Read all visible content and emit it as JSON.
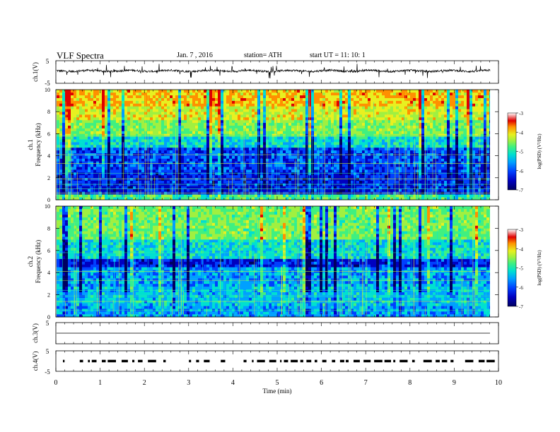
{
  "header": {
    "title": "VLF Spectra",
    "date": "Jan. 7 , 2016",
    "station": "station= ATH",
    "start": "start UT = 11: 10: 1"
  },
  "colors": {
    "colormap": [
      "#000060",
      "#0000c0",
      "#0040ff",
      "#00a0ff",
      "#00e0d0",
      "#40f080",
      "#a0f040",
      "#e8f020",
      "#ff9000",
      "#e00000",
      "#ffffff"
    ]
  },
  "chart_data": [
    {
      "type": "line",
      "title": "",
      "ylabel": "ch.1(V)",
      "xlabel": "",
      "ylim": [
        -5,
        5
      ],
      "xlim": [
        0,
        10
      ],
      "y_ticks": [
        "5",
        "-5"
      ],
      "series": [
        {
          "values_summary": "noisy trace oscillating around ~0.5 V with frequent spikes up to ±3 V",
          "mean": 0.5,
          "amplitude": 3
        }
      ]
    },
    {
      "type": "heatmap",
      "ylabel_1": "ch.1",
      "ylabel_2": "Frequency (kHz)",
      "ylim": [
        0,
        10
      ],
      "xlim": [
        0,
        10
      ],
      "y_ticks": [
        "0",
        "2",
        "4",
        "6",
        "8",
        "10"
      ],
      "bands": [
        {
          "from": 0,
          "to": 0.5,
          "level": 0.55
        },
        {
          "from": 0.5,
          "to": 2.6,
          "level": 0.2
        },
        {
          "from": 2.6,
          "to": 4.7,
          "level": 0.25
        },
        {
          "from": 4.7,
          "to": 5.8,
          "level": 0.45
        },
        {
          "from": 5.8,
          "to": 7.2,
          "level": 0.62
        },
        {
          "from": 7.2,
          "to": 8.6,
          "level": 0.72
        },
        {
          "from": 8.6,
          "to": 10,
          "level": 0.8
        }
      ],
      "colorbar": {
        "label": "log(PSD) (V²/Hz)",
        "ticks": [
          "-3",
          "-4",
          "-5",
          "-6",
          "-7"
        ],
        "range": [
          -7,
          -3
        ]
      }
    },
    {
      "type": "heatmap",
      "ylabel_1": "ch.2",
      "ylabel_2": "Frequency (kHz)",
      "ylim": [
        0,
        10
      ],
      "xlim": [
        0,
        10
      ],
      "y_ticks": [
        "0",
        "2",
        "4",
        "6",
        "8",
        "10"
      ],
      "bands": [
        {
          "from": 0,
          "to": 1.0,
          "level": 0.35
        },
        {
          "from": 1.0,
          "to": 2.8,
          "level": 0.4
        },
        {
          "from": 2.8,
          "to": 4.4,
          "level": 0.35
        },
        {
          "from": 4.4,
          "to": 5.2,
          "level": 0.2
        },
        {
          "from": 5.2,
          "to": 7.0,
          "level": 0.45
        },
        {
          "from": 7.0,
          "to": 10,
          "level": 0.6
        }
      ],
      "colorbar": {
        "label": "log(PSD) (V²/Hz)",
        "ticks": [
          "-3",
          "-4",
          "-5",
          "-6",
          "-7"
        ],
        "range": [
          -7,
          -3
        ]
      }
    },
    {
      "type": "line",
      "ylabel": "ch.3(V)",
      "ylim": [
        -5,
        5
      ],
      "xlim": [
        0,
        10
      ],
      "y_ticks": [
        "5"
      ],
      "series": [
        {
          "values_summary": "flat trace near 0 V"
        }
      ]
    },
    {
      "type": "line",
      "ylabel": "ch.4(V)",
      "ylim": [
        -5,
        5
      ],
      "xlim": [
        0,
        10
      ],
      "y_ticks": [
        "5",
        "-5"
      ],
      "series": [
        {
          "values_summary": "intermittent short pulse bursts near 0 V"
        }
      ]
    }
  ],
  "xaxis": {
    "label": "Time (min)",
    "ticks": [
      "0",
      "1",
      "2",
      "3",
      "4",
      "5",
      "6",
      "7",
      "8",
      "9",
      "10"
    ],
    "range": [
      0,
      10
    ]
  }
}
